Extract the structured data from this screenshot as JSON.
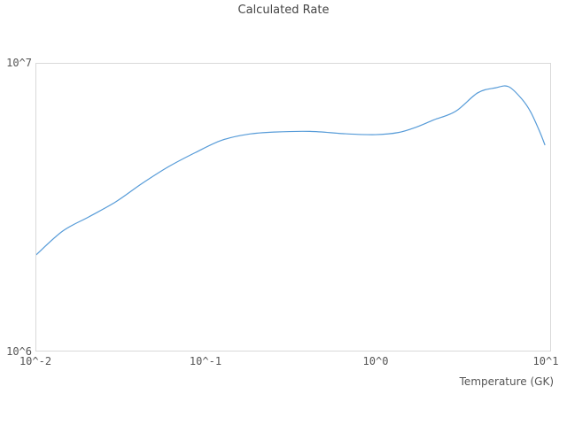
{
  "title": "Calculated Rate",
  "colors": {
    "background": "#ffffff",
    "line": "#569bd8",
    "plot_border": "#d9d9d9",
    "title_text": "#444444",
    "tick_text": "#555555"
  },
  "chart_data": {
    "type": "line",
    "title": "Calculated Rate",
    "xlabel": "Temperature (GK)",
    "ylabel": "",
    "x_scale": "log",
    "y_scale": "log",
    "xlim": [
      0.01,
      10.75
    ],
    "ylim": [
      1000000,
      10000000
    ],
    "grid": false,
    "legend": false,
    "x_ticks": [
      {
        "value": 0.01,
        "label": "10^-2"
      },
      {
        "value": 0.1,
        "label": "10^-1"
      },
      {
        "value": 1,
        "label": "10^0"
      },
      {
        "value": 10,
        "label": "10^1"
      }
    ],
    "y_ticks": [
      {
        "value": 1000000,
        "label": "10^6"
      },
      {
        "value": 10000000,
        "label": "10^7"
      }
    ],
    "series": [
      {
        "name": "Calculated Rate",
        "color": "#569bd8",
        "x": [
          0.01,
          0.0143,
          0.0205,
          0.0294,
          0.0422,
          0.0604,
          0.0866,
          0.124,
          0.178,
          0.255,
          0.412,
          0.665,
          1.0,
          1.37,
          1.74,
          2.21,
          2.98,
          4.02,
          5.11,
          6.11,
          7.32,
          8.26,
          9.31,
          10.0
        ],
        "y": [
          2160000,
          2610000,
          2930000,
          3300000,
          3830000,
          4380000,
          4900000,
          5410000,
          5680000,
          5780000,
          5810000,
          5700000,
          5660000,
          5760000,
          6010000,
          6370000,
          6830000,
          7920000,
          8240000,
          8320000,
          7530000,
          6780000,
          5810000,
          5220000
        ]
      }
    ]
  }
}
